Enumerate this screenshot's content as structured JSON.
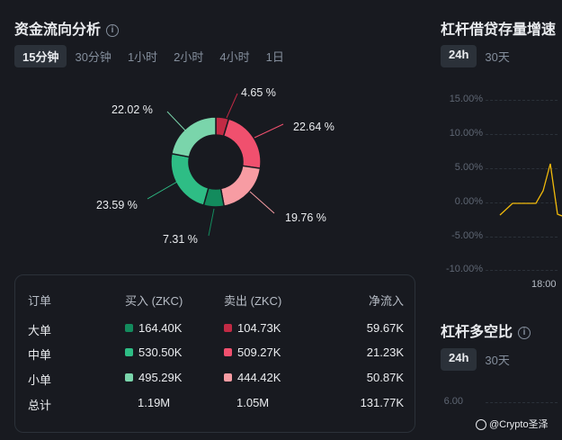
{
  "left": {
    "title": "资金流向分析",
    "info_icon": "i",
    "tabs": [
      {
        "label": "15分钟",
        "active": true
      },
      {
        "label": "30分钟",
        "active": false
      },
      {
        "label": "1小时",
        "active": false
      },
      {
        "label": "2小时",
        "active": false
      },
      {
        "label": "4小时",
        "active": false
      },
      {
        "label": "1日",
        "active": false
      }
    ],
    "donut": {
      "labels": {
        "s1": "4.65 %",
        "s2": "22.64 %",
        "s3": "19.76 %",
        "s4": "7.31 %",
        "s5": "23.59 %",
        "s6": "22.02 %"
      },
      "colors": {
        "sell_large": "#c12a44",
        "sell_mid": "#f0506e",
        "sell_small": "#f79ca3",
        "buy_large": "#138b5d",
        "buy_mid": "#2ebd85",
        "buy_small": "#7ad5ab"
      }
    },
    "table": {
      "headers": {
        "order": "订单",
        "buy": "买入 (ZKC)",
        "sell": "卖出 (ZKC)",
        "net": "净流入"
      },
      "rows": [
        {
          "label": "大单",
          "buy": "164.40K",
          "sell": "104.73K",
          "net": "59.67K",
          "buy_color": "#138b5d",
          "sell_color": "#c12a44"
        },
        {
          "label": "中单",
          "buy": "530.50K",
          "sell": "509.27K",
          "net": "21.23K",
          "buy_color": "#2ebd85",
          "sell_color": "#f0506e"
        },
        {
          "label": "小单",
          "buy": "495.29K",
          "sell": "444.42K",
          "net": "50.87K",
          "buy_color": "#7ad5ab",
          "sell_color": "#f79ca3"
        }
      ],
      "total": {
        "label": "总计",
        "buy": "1.19M",
        "sell": "1.05M",
        "net": "131.77K"
      }
    }
  },
  "right": {
    "title": "杠杆借贷存量增速",
    "tabs": [
      {
        "label": "24h",
        "active": true
      },
      {
        "label": "30天",
        "active": false
      }
    ],
    "yaxis": [
      "15.00%",
      "10.00%",
      "5.00%",
      "0.00%",
      "-5.00%",
      "-10.00%"
    ],
    "xaxis": [
      "18:00"
    ],
    "line_color": "#f0b90b",
    "title2": "杠杆多空比",
    "info_icon": "i",
    "tabs2": [
      {
        "label": "24h",
        "active": true
      },
      {
        "label": "30天",
        "active": false
      }
    ],
    "yaxis2_top": "6.00"
  },
  "watermark": "@Crypto圣泽"
}
